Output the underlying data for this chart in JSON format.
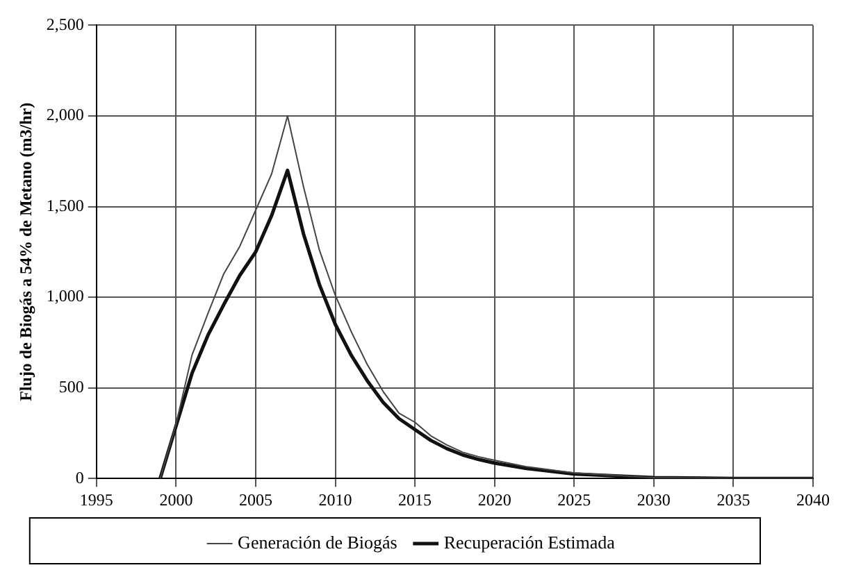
{
  "chart_data": {
    "type": "line",
    "ylabel": "Flujo de Biogás a 54% de Metano (m3/hr)",
    "x": [
      1999,
      2000,
      2001,
      2002,
      2003,
      2004,
      2005,
      2006,
      2007,
      2008,
      2009,
      2010,
      2011,
      2012,
      2013,
      2014,
      2015,
      2016,
      2017,
      2018,
      2019,
      2020,
      2022,
      2025,
      2030,
      2035,
      2040
    ],
    "series": [
      {
        "name": "Generación de Biogás",
        "color": "#444444",
        "values": [
          0,
          300,
          680,
          910,
          1130,
          1280,
          1480,
          1680,
          2000,
          1610,
          1260,
          1010,
          810,
          630,
          480,
          360,
          310,
          235,
          185,
          145,
          120,
          100,
          65,
          30,
          5,
          0,
          0
        ]
      },
      {
        "name": "Recuperación Estimada",
        "color": "#111111",
        "values": [
          0,
          290,
          580,
          790,
          960,
          1120,
          1250,
          1450,
          1700,
          1350,
          1070,
          850,
          680,
          540,
          420,
          330,
          270,
          210,
          165,
          130,
          105,
          85,
          55,
          25,
          5,
          0,
          0
        ]
      }
    ],
    "xlim": [
      1995,
      2040
    ],
    "xticks": [
      1995,
      2000,
      2005,
      2010,
      2015,
      2020,
      2025,
      2030,
      2035,
      2040
    ],
    "ylim": [
      0,
      2500
    ],
    "yticks": [
      0,
      500,
      {
        "value": 1000,
        "label": "1,000"
      },
      {
        "value": 1500,
        "label": "1,500"
      },
      {
        "value": 2000,
        "label": "2,000"
      },
      {
        "value": 2500,
        "label": "2,500"
      }
    ],
    "grid": true,
    "legend": "bottom",
    "marker": "none",
    "line_style": "solid"
  }
}
